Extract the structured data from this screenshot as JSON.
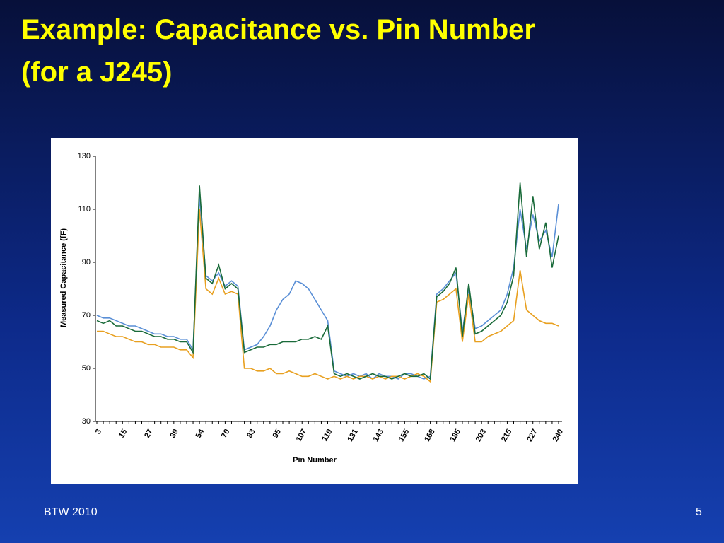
{
  "slide": {
    "title": "Example: Capacitance vs. Pin Number (for a J245)",
    "footer": "BTW 2010",
    "page_number": "5"
  },
  "chart_data": {
    "type": "line",
    "x_label": "Pin Number",
    "y_label": "Measured Capacitance  (fF)",
    "categories": [
      3,
      null,
      null,
      null,
      15,
      null,
      null,
      null,
      27,
      null,
      null,
      null,
      39,
      null,
      null,
      null,
      54,
      null,
      null,
      null,
      70,
      null,
      null,
      null,
      83,
      null,
      null,
      null,
      95,
      null,
      null,
      null,
      107,
      null,
      null,
      null,
      119,
      null,
      null,
      null,
      131,
      null,
      null,
      null,
      143,
      null,
      null,
      null,
      155,
      null,
      null,
      null,
      168,
      null,
      null,
      null,
      185,
      null,
      null,
      null,
      203,
      null,
      null,
      null,
      215,
      null,
      null,
      null,
      227,
      null,
      null,
      null,
      240
    ],
    "ylim": [
      30,
      130
    ],
    "yticks": [
      30,
      50,
      70,
      90,
      110,
      130
    ],
    "grid": false,
    "series": [
      {
        "color": "#5a8fd6",
        "values": [
          70,
          69,
          69,
          68,
          67,
          66,
          66,
          65,
          64,
          63,
          63,
          62,
          62,
          61,
          61,
          57,
          115,
          85,
          83,
          86,
          81,
          83,
          81,
          57,
          58,
          59,
          62,
          66,
          72,
          76,
          78,
          83,
          82,
          80,
          76,
          72,
          68,
          49,
          48,
          47,
          48,
          47,
          48,
          46,
          48,
          47,
          47,
          46,
          48,
          48,
          47,
          46,
          47,
          78,
          80,
          83,
          86,
          64,
          80,
          65,
          66,
          68,
          70,
          72,
          78,
          88,
          110,
          95,
          108,
          98,
          102,
          92,
          112
        ]
      },
      {
        "color": "#e8a020",
        "values": [
          64,
          64,
          63,
          62,
          62,
          61,
          60,
          60,
          59,
          59,
          58,
          58,
          58,
          57,
          57,
          54,
          110,
          80,
          78,
          84,
          78,
          79,
          78,
          50,
          50,
          49,
          49,
          50,
          48,
          48,
          49,
          48,
          47,
          47,
          48,
          47,
          46,
          47,
          46,
          47,
          46,
          47,
          47,
          46,
          47,
          46,
          47,
          47,
          46,
          47,
          48,
          47,
          45,
          75,
          76,
          78,
          80,
          60,
          78,
          60,
          60,
          62,
          63,
          64,
          66,
          68,
          87,
          72,
          70,
          68,
          67,
          67,
          66
        ]
      },
      {
        "color": "#1a6b3a",
        "values": [
          68,
          67,
          68,
          66,
          66,
          65,
          64,
          64,
          63,
          62,
          62,
          61,
          61,
          60,
          60,
          56,
          119,
          84,
          82,
          89,
          80,
          82,
          80,
          56,
          57,
          58,
          58,
          59,
          59,
          60,
          60,
          60,
          61,
          61,
          62,
          61,
          66,
          48,
          47,
          48,
          47,
          46,
          47,
          48,
          47,
          47,
          46,
          47,
          48,
          47,
          47,
          48,
          46,
          77,
          79,
          82,
          88,
          62,
          82,
          63,
          64,
          66,
          68,
          70,
          75,
          85,
          120,
          92,
          115,
          95,
          105,
          88,
          100
        ]
      }
    ]
  }
}
